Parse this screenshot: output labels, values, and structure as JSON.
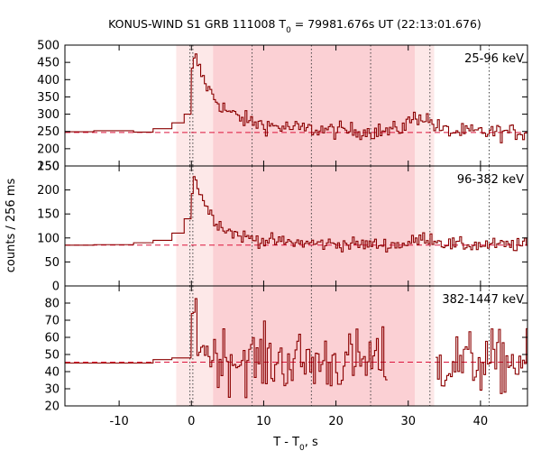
{
  "chart_data": {
    "type": "step",
    "title_parts": [
      "KONUS-WIND S1 GRB 111008 T",
      "0",
      " = 79981.676s UT (22:13:01.676)"
    ],
    "xlabel_parts": [
      "T - T",
      "0",
      ", s"
    ],
    "ylabel": "counts / 256 ms",
    "xlim": [
      -17.5,
      46.5
    ],
    "xticks": [
      -10,
      0,
      10,
      20,
      30,
      40
    ],
    "xtick_labels": [
      "-10",
      "0",
      "10",
      "20",
      "30",
      "40"
    ],
    "colors": {
      "line": "#8b0000",
      "background": "#dc143c",
      "outer_shade": "#fde8e8",
      "inner_shade": "#fbd0d4",
      "vline": "#333333"
    },
    "shaded_regions": [
      {
        "kind": "outer",
        "x0": -2.1,
        "x1": 33.6
      },
      {
        "kind": "inner",
        "x0": 3.0,
        "x1": 30.9
      }
    ],
    "vlines": [
      -0.2,
      0.2,
      8.4,
      16.6,
      24.8,
      33.0,
      41.2
    ],
    "panels": [
      {
        "name": "25-96 keV",
        "ylim": [
          150,
          500
        ],
        "yticks": [
          150,
          200,
          250,
          300,
          350,
          400,
          450,
          500
        ],
        "ytick_labels": [
          "150",
          "200",
          "250",
          "300",
          "350",
          "400",
          "450",
          "500"
        ],
        "background_level": 247,
        "coarse_steps": [
          {
            "x0": -17.5,
            "x1": -13.5,
            "y": 249
          },
          {
            "x0": -13.5,
            "x1": -8.0,
            "y": 252
          },
          {
            "x0": -8.0,
            "x1": -5.3,
            "y": 248
          },
          {
            "x0": -5.3,
            "x1": -2.7,
            "y": 258
          },
          {
            "x0": -2.7,
            "x1": -1.0,
            "y": 275
          },
          {
            "x0": -1.0,
            "x1": -0.05,
            "y": 300
          }
        ],
        "fine_x0": 0.0,
        "fine_dt": 0.256,
        "pulse": {
          "peak": 445,
          "decay": 2.6,
          "tail_amp": 55,
          "tail_decay": 9
        },
        "bumps": [
          {
            "center": 31.5,
            "width": 1.6,
            "amp": 45
          }
        ],
        "noise": 12,
        "fine_x1": 46.5
      },
      {
        "name": "96-382 keV",
        "ylim": [
          0,
          250
        ],
        "yticks": [
          0,
          50,
          100,
          150,
          200,
          250
        ],
        "ytick_labels": [
          "0",
          "50",
          "100",
          "150",
          "200",
          "250"
        ],
        "background_level": 85,
        "coarse_steps": [
          {
            "x0": -17.5,
            "x1": -13.5,
            "y": 85
          },
          {
            "x0": -13.5,
            "x1": -8.0,
            "y": 86
          },
          {
            "x0": -8.0,
            "x1": -5.3,
            "y": 90
          },
          {
            "x0": -5.3,
            "x1": -2.7,
            "y": 95
          },
          {
            "x0": -2.7,
            "x1": -1.0,
            "y": 110
          },
          {
            "x0": -1.0,
            "x1": -0.05,
            "y": 140
          }
        ],
        "fine_x0": 0.0,
        "fine_dt": 0.256,
        "pulse": {
          "peak": 225,
          "decay": 2.2,
          "tail_amp": 30,
          "tail_decay": 8
        },
        "bumps": [
          {
            "center": 32.5,
            "width": 1.5,
            "amp": 15
          }
        ],
        "noise": 7,
        "fine_x1": 46.5
      },
      {
        "name": "382-1447 keV",
        "ylim": [
          20,
          90
        ],
        "yticks": [
          20,
          30,
          40,
          50,
          60,
          70,
          80
        ],
        "ytick_labels": [
          "20",
          "30",
          "40",
          "50",
          "60",
          "70",
          "80"
        ],
        "background_level": 45.5,
        "coarse_steps": [
          {
            "x0": -17.5,
            "x1": -13.5,
            "y": 45
          },
          {
            "x0": -13.5,
            "x1": -8.0,
            "y": 45
          },
          {
            "x0": -8.0,
            "x1": -5.3,
            "y": 45
          },
          {
            "x0": -5.3,
            "x1": -2.7,
            "y": 47
          },
          {
            "x0": -2.7,
            "x1": -0.05,
            "y": 48
          }
        ],
        "fine_x0": 0.0,
        "fine_dt": 0.256,
        "pulse": {
          "peak": 80,
          "decay": 0.8,
          "tail_amp": 6,
          "tail_decay": 5
        },
        "bumps": [],
        "noise": 9,
        "gap": [
          26.9,
          33.7
        ],
        "fine_x1": 46.5
      }
    ]
  }
}
